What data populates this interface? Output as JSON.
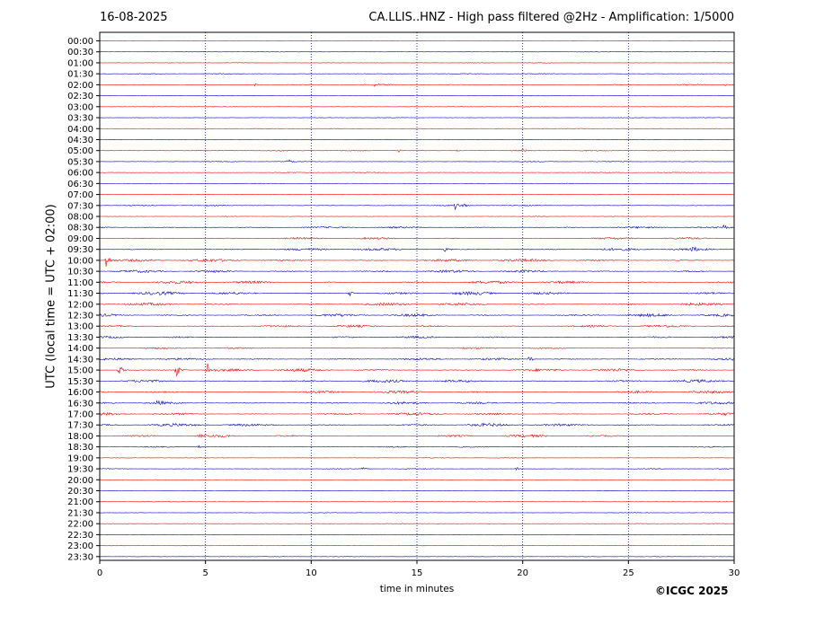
{
  "header": {
    "date": "16-08-2025",
    "title": "CA.LLIS..HNZ - High pass filtered @2Hz - Amplification: 1/5000"
  },
  "footer": {
    "copyright": "©ICGC 2025"
  },
  "chart_data": {
    "type": "line",
    "title": "CA.LLIS..HNZ - High pass filtered @2Hz - Amplification: 1/5000",
    "xlabel": "time in minutes",
    "ylabel": "UTC (local time = UTC + 02:00)",
    "xlim": [
      0,
      30
    ],
    "xticks": [
      0,
      5,
      10,
      15,
      20,
      25,
      30
    ],
    "vertical_gridlines": [
      5,
      10,
      15,
      20,
      25
    ],
    "grid": true,
    "trace_colors": [
      "#ff0000",
      "#0000cc"
    ],
    "row_labels": [
      "00:00",
      "00:30",
      "01:00",
      "01:30",
      "02:00",
      "02:30",
      "03:00",
      "03:30",
      "04:00",
      "04:30",
      "05:00",
      "05:30",
      "06:00",
      "06:30",
      "07:00",
      "07:30",
      "08:00",
      "08:30",
      "09:00",
      "09:30",
      "10:00",
      "10:30",
      "11:00",
      "11:30",
      "12:00",
      "12:30",
      "13:00",
      "13:30",
      "14:00",
      "14:30",
      "15:00",
      "15:30",
      "16:00",
      "16:30",
      "17:00",
      "17:30",
      "18:00",
      "18:30",
      "19:00",
      "19:30",
      "20:00",
      "20:30",
      "21:00",
      "21:30",
      "22:00",
      "22:30",
      "23:00",
      "23:30"
    ],
    "noise_levels": [
      1,
      1,
      1,
      1.5,
      2,
      1,
      1,
      1,
      1,
      1,
      2,
      1.5,
      1.5,
      1,
      1,
      2,
      1,
      3,
      3.5,
      4.5,
      5,
      4.5,
      5,
      5.5,
      5,
      5,
      4,
      3.5,
      3,
      4,
      5,
      5,
      4.5,
      4,
      4.5,
      5,
      4,
      2,
      1,
      1.5,
      1,
      1,
      1,
      1,
      1,
      1,
      1,
      1
    ],
    "events": [
      {
        "row": 4,
        "minute": 7.3,
        "amplitude": 2
      },
      {
        "row": 4,
        "minute": 13.0,
        "amplitude": 2
      },
      {
        "row": 4,
        "minute": 29.5,
        "amplitude": 2
      },
      {
        "row": 10,
        "minute": 14.1,
        "amplitude": 2
      },
      {
        "row": 10,
        "minute": 16.8,
        "amplitude": 2
      },
      {
        "row": 10,
        "minute": 20.0,
        "amplitude": 2
      },
      {
        "row": 11,
        "minute": 8.9,
        "amplitude": 3
      },
      {
        "row": 15,
        "minute": 16.8,
        "amplitude": 5
      },
      {
        "row": 15,
        "minute": 17.1,
        "amplitude": 4
      },
      {
        "row": 17,
        "minute": 29.5,
        "amplitude": 3
      },
      {
        "row": 19,
        "minute": 16.3,
        "amplitude": 3
      },
      {
        "row": 19,
        "minute": 28.0,
        "amplitude": 4
      },
      {
        "row": 20,
        "minute": 0.3,
        "amplitude": 9
      },
      {
        "row": 23,
        "minute": 11.8,
        "amplitude": 4
      },
      {
        "row": 29,
        "minute": 20.3,
        "amplitude": 5
      },
      {
        "row": 30,
        "minute": 0.9,
        "amplitude": 9
      },
      {
        "row": 30,
        "minute": 3.6,
        "amplitude": 12
      },
      {
        "row": 30,
        "minute": 5.1,
        "amplitude": 8
      },
      {
        "row": 33,
        "minute": 2.7,
        "amplitude": 6
      },
      {
        "row": 36,
        "minute": 4.7,
        "amplitude": 3
      },
      {
        "row": 37,
        "minute": 4.6,
        "amplitude": 3
      },
      {
        "row": 39,
        "minute": 19.7,
        "amplitude": 2
      },
      {
        "row": 39,
        "minute": 12.4,
        "amplitude": 2
      }
    ]
  }
}
